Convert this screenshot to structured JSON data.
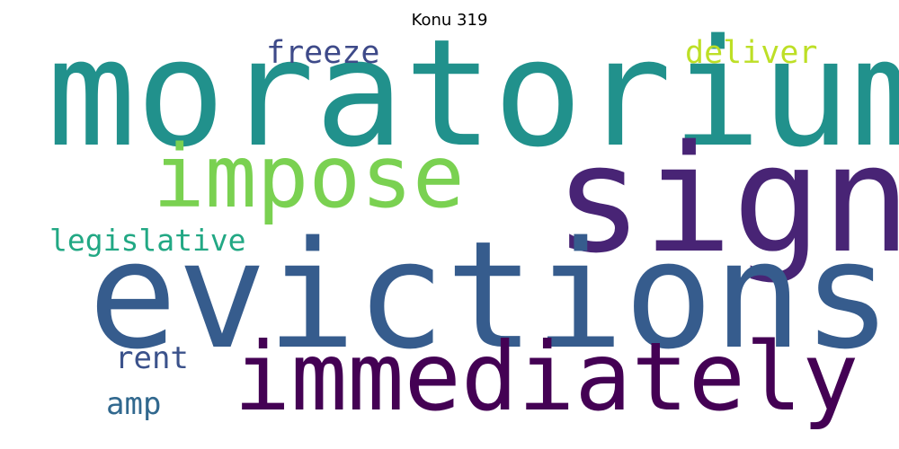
{
  "title": "Konu 319",
  "words": [
    {
      "id": "moratorium",
      "text": "moratorium",
      "color": "#21918c"
    },
    {
      "id": "sign",
      "text": "sign",
      "color": "#482475"
    },
    {
      "id": "evictions",
      "text": "evictions",
      "color": "#365c8d"
    },
    {
      "id": "impose",
      "text": "impose",
      "color": "#7ad151"
    },
    {
      "id": "immediately",
      "text": "immediately",
      "color": "#440154"
    },
    {
      "id": "freeze",
      "text": "freeze",
      "color": "#3e4a89"
    },
    {
      "id": "deliver",
      "text": "deliver",
      "color": "#bddf26"
    },
    {
      "id": "legislative",
      "text": "legislative",
      "color": "#22a884"
    },
    {
      "id": "rent",
      "text": "rent",
      "color": "#3b528b"
    },
    {
      "id": "amp",
      "text": "amp",
      "color": "#31688e"
    }
  ]
}
